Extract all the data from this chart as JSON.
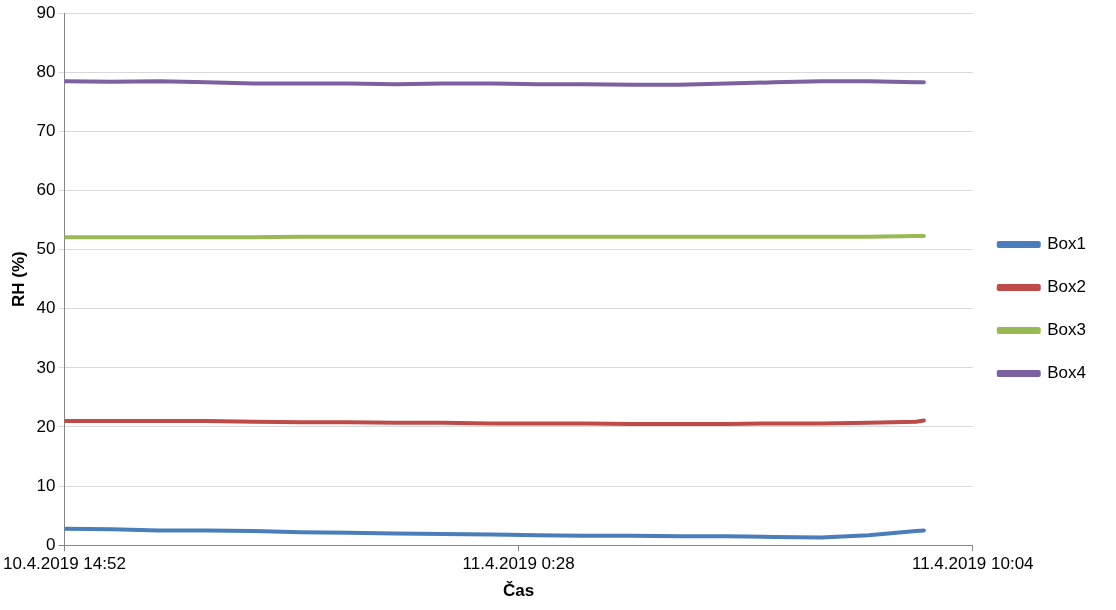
{
  "chart_data": {
    "type": "line",
    "xlabel": "Čas",
    "ylabel": "RH (%)",
    "x": [
      "2019-04-10T14:52",
      "2019-04-10T15:52",
      "2019-04-10T16:52",
      "2019-04-10T17:52",
      "2019-04-10T18:52",
      "2019-04-10T19:52",
      "2019-04-10T20:52",
      "2019-04-10T21:52",
      "2019-04-10T22:52",
      "2019-04-10T23:52",
      "2019-04-11T00:52",
      "2019-04-11T01:52",
      "2019-04-11T02:52",
      "2019-04-11T03:52",
      "2019-04-11T04:52",
      "2019-04-11T05:52",
      "2019-04-11T06:52",
      "2019-04-11T07:52",
      "2019-04-11T08:52",
      "2019-04-11T09:02"
    ],
    "series": [
      {
        "name": "Box1",
        "color": "#4a7ebb",
        "values": [
          2.8,
          2.7,
          2.5,
          2.5,
          2.4,
          2.2,
          2.1,
          2.0,
          1.9,
          1.8,
          1.7,
          1.6,
          1.6,
          1.5,
          1.5,
          1.4,
          1.3,
          1.7,
          2.4,
          2.5
        ]
      },
      {
        "name": "Box2",
        "color": "#be4b48",
        "values": [
          21,
          21,
          21,
          21,
          20.9,
          20.8,
          20.8,
          20.7,
          20.7,
          20.6,
          20.6,
          20.6,
          20.5,
          20.5,
          20.5,
          20.6,
          20.6,
          20.7,
          20.9,
          21.1
        ]
      },
      {
        "name": "Box3",
        "color": "#98b954",
        "values": [
          52.1,
          52.1,
          52.1,
          52.1,
          52.1,
          52.2,
          52.2,
          52.2,
          52.2,
          52.2,
          52.2,
          52.2,
          52.2,
          52.2,
          52.2,
          52.2,
          52.2,
          52.2,
          52.3,
          52.3
        ]
      },
      {
        "name": "Box4",
        "color": "#7d60a0",
        "values": [
          78.5,
          78.4,
          78.5,
          78.3,
          78.1,
          78.1,
          78.1,
          78.0,
          78.1,
          78.1,
          78.0,
          78.0,
          77.9,
          77.9,
          78.1,
          78.3,
          78.5,
          78.5,
          78.3,
          78.3
        ]
      }
    ],
    "xlim": [
      "2019-04-10T14:52",
      "2019-04-11T10:04"
    ],
    "xticks": [
      {
        "value": "2019-04-10T14:52",
        "label": "10.4.2019 14:52"
      },
      {
        "value": "2019-04-11T00:28",
        "label": "11.4.2019 0:28"
      },
      {
        "value": "2019-04-11T10:04",
        "label": "11.4.2019 10:04"
      }
    ],
    "ylim": [
      0,
      90
    ],
    "yticks": [
      0,
      10,
      20,
      30,
      40,
      50,
      60,
      70,
      80,
      90
    ],
    "grid": "y",
    "legend": "right",
    "marker": "none",
    "line_style": "solid"
  }
}
